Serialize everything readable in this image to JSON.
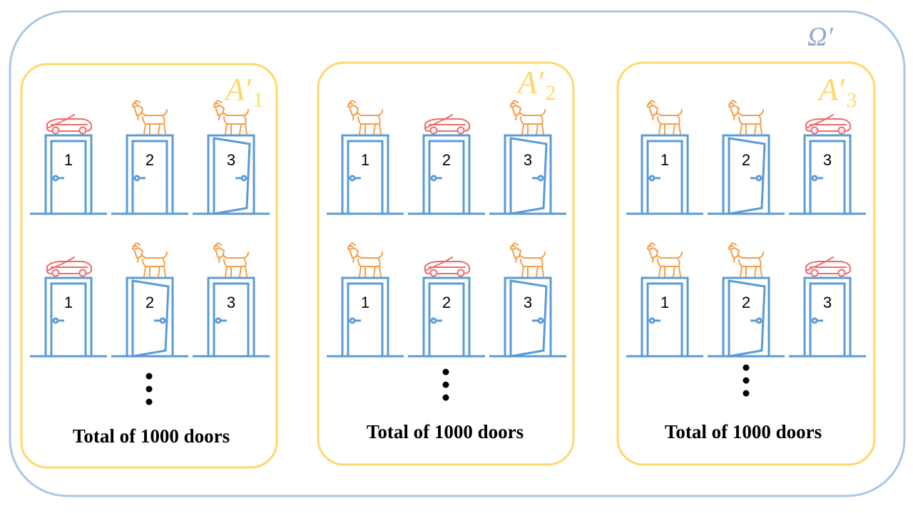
{
  "universe_label": "Ω′",
  "colors": {
    "outer_border": "#a9c7e6",
    "panel_border": "#ffd86b",
    "door": "#5b9bd5",
    "car": "#f06a6a",
    "goat": "#f59e4a",
    "label_set": "#ffd86b",
    "label_universe": "#8fa9d6"
  },
  "panels": [
    {
      "set_label": "A",
      "set_sub": "1",
      "total_text": "Total of 1000 doors",
      "rows": [
        {
          "prizes": [
            "car-icon",
            "goat-icon",
            "goat-icon"
          ],
          "open_door": "3",
          "doors": [
            "1",
            "2",
            "3"
          ]
        },
        {
          "prizes": [
            "car-icon",
            "goat-icon",
            "goat-icon"
          ],
          "open_door": "2",
          "doors": [
            "1",
            "2",
            "3"
          ]
        }
      ]
    },
    {
      "set_label": "A",
      "set_sub": "2",
      "total_text": "Total of 1000 doors",
      "rows": [
        {
          "prizes": [
            "goat-icon",
            "car-icon",
            "goat-icon"
          ],
          "open_door": "3",
          "doors": [
            "1",
            "2",
            "3"
          ]
        },
        {
          "prizes": [
            "goat-icon",
            "car-icon",
            "goat-icon"
          ],
          "open_door": "3",
          "doors": [
            "1",
            "2",
            "3"
          ]
        }
      ]
    },
    {
      "set_label": "A",
      "set_sub": "3",
      "total_text": "Total of 1000 doors",
      "rows": [
        {
          "prizes": [
            "goat-icon",
            "goat-icon",
            "car-icon"
          ],
          "open_door": "2",
          "doors": [
            "1",
            "2",
            "3"
          ]
        },
        {
          "prizes": [
            "goat-icon",
            "goat-icon",
            "car-icon"
          ],
          "open_door": "2",
          "doors": [
            "1",
            "2",
            "3"
          ]
        }
      ]
    }
  ]
}
